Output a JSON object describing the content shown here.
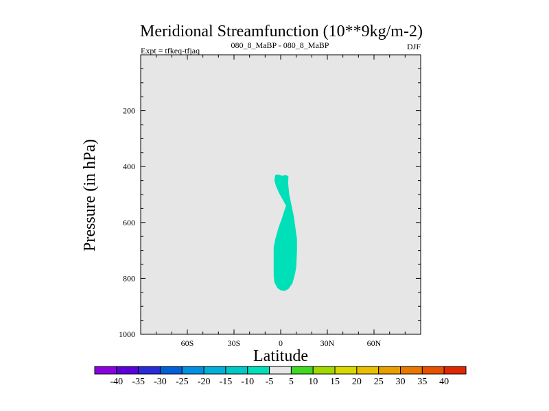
{
  "chart_data": {
    "type": "heatmap",
    "title": "Meridional Streamfunction (10**9kg/m-2)",
    "subtitle_left": "Expt = tfkeq-tfjaq",
    "subtitle_center": "080_8_MaBP - 080_8_MaBP",
    "subtitle_right": "DJF",
    "xlabel": "Latitude",
    "ylabel": "Pressure (in hPa)",
    "x_ticks": [
      {
        "value": -60,
        "label": "60S"
      },
      {
        "value": -30,
        "label": "30S"
      },
      {
        "value": 0,
        "label": "0"
      },
      {
        "value": 30,
        "label": "30N"
      },
      {
        "value": 60,
        "label": "60N"
      }
    ],
    "y_ticks": [
      {
        "value": 200,
        "label": "200"
      },
      {
        "value": 400,
        "label": "400"
      },
      {
        "value": 600,
        "label": "600"
      },
      {
        "value": 800,
        "label": "800"
      },
      {
        "value": 1000,
        "label": "1000"
      }
    ],
    "xlim": [
      -90,
      90
    ],
    "ylim": [
      1000,
      0
    ],
    "background_color": "#e6e6e6",
    "filled_region": {
      "level": "-10 to -5",
      "color": "#00e0b8",
      "boundary": [
        [
          -3.5,
          430
        ],
        [
          -1.5,
          428
        ],
        [
          1,
          433
        ],
        [
          3,
          430
        ],
        [
          5,
          434
        ],
        [
          4.8,
          460
        ],
        [
          5.5,
          500
        ],
        [
          7,
          540
        ],
        [
          8.5,
          580
        ],
        [
          9.5,
          620
        ],
        [
          10.5,
          660
        ],
        [
          10.5,
          700
        ],
        [
          10,
          760
        ],
        [
          9,
          790
        ],
        [
          7.5,
          818
        ],
        [
          5,
          838
        ],
        [
          2.5,
          845
        ],
        [
          0,
          843
        ],
        [
          -2,
          835
        ],
        [
          -4,
          815
        ],
        [
          -4.5,
          790
        ],
        [
          -4.5,
          740
        ],
        [
          -4.5,
          690
        ],
        [
          -3.5,
          660
        ],
        [
          -1.5,
          620
        ],
        [
          0.5,
          590
        ],
        [
          2.5,
          555
        ],
        [
          3.5,
          540
        ],
        [
          1.5,
          520
        ],
        [
          -1,
          495
        ],
        [
          -3,
          470
        ],
        [
          -4,
          450
        ]
      ]
    },
    "colorbar": {
      "labels": [
        "-40",
        "-35",
        "-30",
        "-25",
        "-20",
        "-15",
        "-10",
        "-5",
        "5",
        "10",
        "15",
        "20",
        "25",
        "30",
        "35",
        "40"
      ],
      "colors": [
        "#8a00e0",
        "#5a00d8",
        "#2a2ad8",
        "#0060d8",
        "#0090e0",
        "#00b0d8",
        "#00c8c8",
        "#00e0b8",
        "#e6e6e6",
        "#40d820",
        "#a0d800",
        "#d8d800",
        "#e8c000",
        "#e8a000",
        "#e87800",
        "#e85000",
        "#e02800"
      ]
    }
  }
}
